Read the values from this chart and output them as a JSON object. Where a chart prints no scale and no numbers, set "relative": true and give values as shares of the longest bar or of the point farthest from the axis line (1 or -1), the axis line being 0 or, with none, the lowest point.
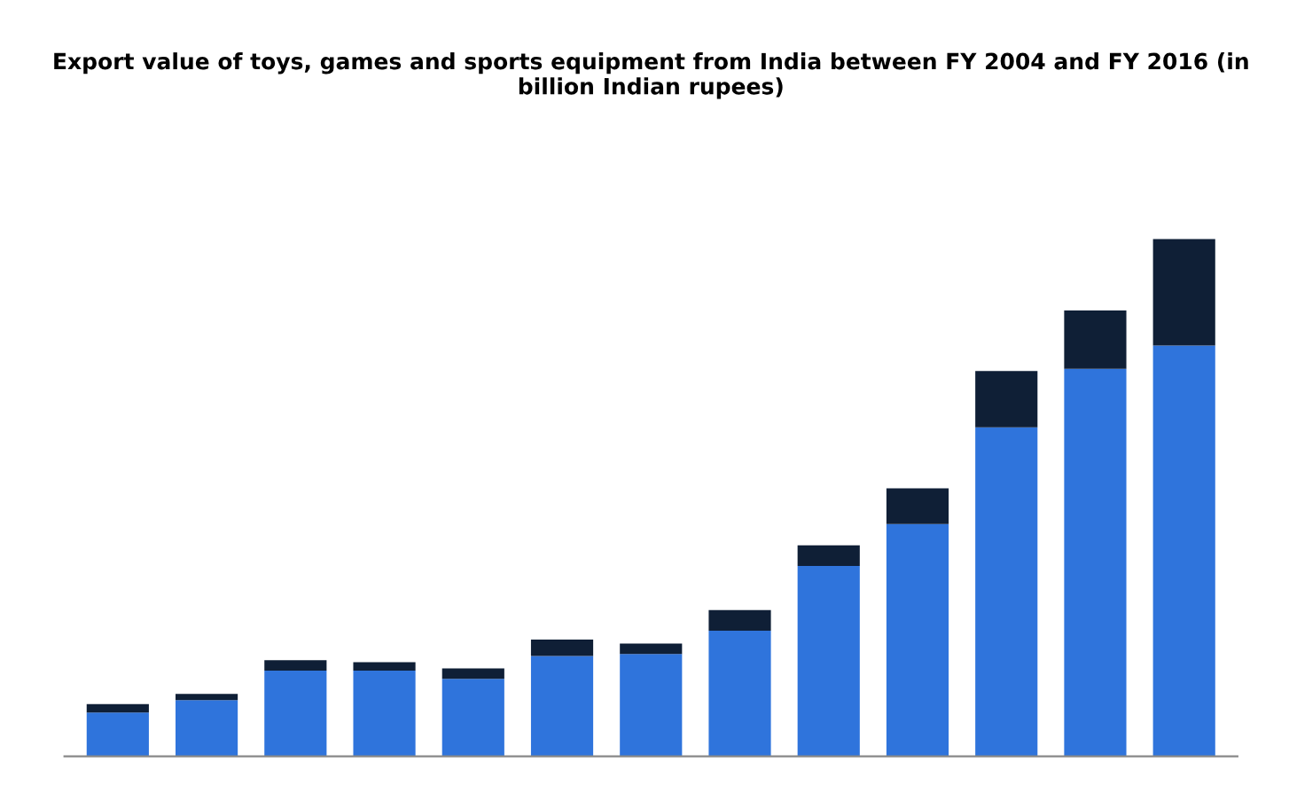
{
  "chart_data": {
    "type": "bar",
    "title": "Export value of toys, games and sports equipment from India between FY 2004 and FY 2016 (in billion Indian rupees)",
    "categories": [
      null,
      null,
      null,
      null,
      null,
      null,
      null,
      null,
      null,
      null,
      null,
      null,
      null
    ],
    "stacked": true,
    "relative": true,
    "series": [
      {
        "color": "#2f74dc",
        "values": [
          0.085,
          0.109,
          0.166,
          0.166,
          0.15,
          0.194,
          0.198,
          0.243,
          0.368,
          0.449,
          0.636,
          0.749,
          0.794
        ]
      },
      {
        "color": "#0f1f36",
        "values": [
          0.016,
          0.012,
          0.02,
          0.016,
          0.02,
          0.032,
          0.02,
          0.04,
          0.04,
          0.069,
          0.109,
          0.113,
          0.206
        ]
      }
    ]
  }
}
